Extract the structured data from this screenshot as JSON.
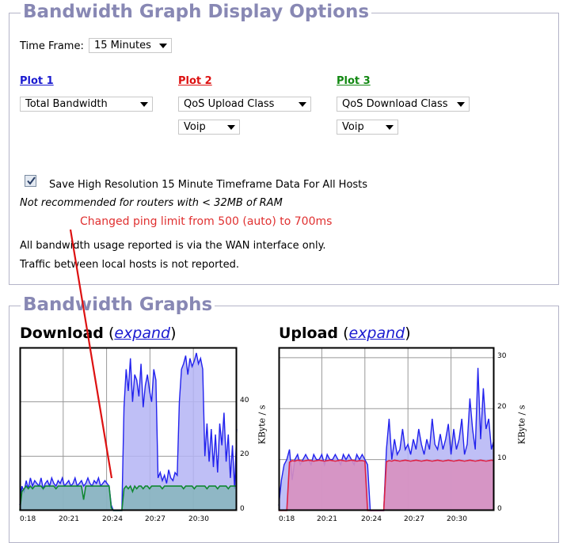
{
  "options": {
    "legend": "Bandwidth Graph Display Options",
    "time_frame": {
      "label": "Time Frame:",
      "value": "15 Minutes"
    },
    "plots": [
      {
        "title": "Plot 1",
        "color": "#1a1ad0",
        "select": "Total Bandwidth",
        "sub_select": ""
      },
      {
        "title": "Plot 2",
        "color": "#dd1111",
        "select": "QoS Upload Class",
        "sub_select": "Voip"
      },
      {
        "title": "Plot 3",
        "color": "#118811",
        "select": "QoS Download Class",
        "sub_select": "Voip"
      }
    ],
    "checkbox": {
      "checked": true,
      "label": "Save High Resolution 15 Minute Timeframe Data For All Hosts"
    },
    "warning": "Not recommended for routers with < 32MB of RAM",
    "annotation": "Changed ping limit from 500 (auto) to 700ms",
    "info_line1": "All bandwidth usage reported is via the WAN interface only.",
    "info_line2": "Traffic between local hosts is not reported."
  },
  "graphs": {
    "legend": "Bandwidth Graphs",
    "download": {
      "title": "Download",
      "expand_open": "(",
      "expand": "expand",
      "expand_close": ")"
    },
    "upload": {
      "title": "Upload",
      "expand_open": "(",
      "expand": "expand",
      "expand_close": ")"
    },
    "unit_label": "KByte / s"
  },
  "chart_data": [
    {
      "type": "area",
      "title": "Download",
      "ylabel": "KByte / s",
      "ylim": [
        0,
        60
      ],
      "y_ticks": [
        "0",
        "20",
        "40"
      ],
      "x_ticks": [
        "0:18",
        "20:21",
        "20:24",
        "20:27",
        "20:30"
      ],
      "series": [
        {
          "name": "",
          "color": "#2222ee",
          "values": [
            2,
            9,
            7,
            11,
            8,
            12,
            9,
            11,
            10,
            9,
            12,
            8,
            10,
            11,
            9,
            12,
            10,
            9,
            11,
            10,
            12,
            9,
            10,
            11,
            9,
            10,
            12,
            9,
            10,
            11,
            9,
            10,
            12,
            10,
            9,
            11,
            10,
            12,
            9,
            10,
            11,
            10,
            9,
            2,
            0,
            0,
            0,
            0,
            0,
            38,
            52,
            44,
            56,
            40,
            50,
            48,
            42,
            54,
            38,
            46,
            50,
            44,
            40,
            52,
            48,
            12,
            14,
            11,
            13,
            10,
            15,
            12,
            11,
            14,
            13,
            40,
            52,
            54,
            57,
            50,
            56,
            53,
            55,
            58,
            54,
            56,
            52,
            20,
            32,
            18,
            30,
            16,
            28,
            14,
            32,
            24,
            36,
            18,
            28,
            12,
            24,
            8,
            30
          ]
        },
        {
          "name": "",
          "color": "#118833",
          "values": [
            0,
            7,
            8,
            9,
            8,
            9,
            8,
            9,
            9,
            9,
            9,
            8,
            9,
            9,
            9,
            9,
            9,
            8,
            9,
            9,
            9,
            9,
            9,
            9,
            9,
            9,
            9,
            9,
            9,
            9,
            4,
            9,
            9,
            9,
            9,
            9,
            9,
            9,
            9,
            9,
            9,
            9,
            9,
            1,
            0,
            0,
            0,
            0,
            0,
            8,
            9,
            8,
            9,
            7,
            9,
            8,
            9,
            9,
            8,
            9,
            9,
            8,
            9,
            9,
            9,
            9,
            9,
            8,
            9,
            9,
            9,
            9,
            9,
            9,
            9,
            9,
            9,
            8,
            9,
            9,
            9,
            9,
            8,
            9,
            9,
            9,
            9,
            9,
            8,
            9,
            9,
            9,
            9,
            8,
            9,
            9,
            9,
            9,
            8,
            9,
            9,
            9,
            9
          ]
        }
      ]
    },
    {
      "type": "area",
      "title": "Upload",
      "ylabel": "KByte / s",
      "ylim": [
        0,
        32
      ],
      "y_ticks": [
        "0",
        "10",
        "20",
        "30"
      ],
      "x_ticks": [
        "0:18",
        "20:21",
        "20:24",
        "20:27",
        "20:30"
      ],
      "series": [
        {
          "name": "",
          "color": "#2222ee",
          "values": [
            1,
            6,
            9,
            10,
            12,
            6,
            10,
            11,
            9,
            10,
            11,
            10,
            9,
            11,
            10,
            10,
            11,
            9,
            11,
            10,
            10,
            11,
            10,
            9,
            11,
            10,
            11,
            10,
            9,
            11,
            10,
            11,
            10,
            9,
            0,
            0,
            0,
            0,
            0,
            0,
            12,
            18,
            10,
            14,
            11,
            12,
            16,
            12,
            13,
            11,
            14,
            12,
            16,
            13,
            11,
            14,
            12,
            18,
            13,
            12,
            15,
            12,
            14,
            17,
            11,
            16,
            12,
            14,
            18,
            11,
            13,
            22,
            16,
            12,
            28,
            14,
            24,
            16,
            18,
            12,
            14
          ]
        },
        {
          "name": "",
          "color": "#dd2244",
          "values": [
            0,
            0,
            0,
            0,
            9.5,
            9.8,
            9.7,
            9.9,
            9.8,
            9.7,
            9.8,
            9.9,
            9.8,
            9.7,
            9.8,
            9.9,
            9.8,
            9.7,
            9.8,
            9.9,
            9.8,
            9.7,
            9.8,
            9.9,
            9.8,
            9.7,
            9.8,
            9.9,
            9.8,
            9.7,
            9.8,
            9.8,
            9.7,
            0,
            0,
            0,
            0,
            0,
            0,
            0,
            9.6,
            9.8,
            9.7,
            9.9,
            9.8,
            9.7,
            9.8,
            9.9,
            9.8,
            9.7,
            9.8,
            9.9,
            9.8,
            9.7,
            9.8,
            9.9,
            9.8,
            9.7,
            9.8,
            9.9,
            9.8,
            9.7,
            9.8,
            9.9,
            9.8,
            9.7,
            9.8,
            9.9,
            9.8,
            9.7,
            9.8,
            9.9,
            9.8,
            9.7,
            9.8,
            9.9,
            9.8,
            9.7,
            9.8,
            9.9,
            9.8
          ]
        }
      ]
    }
  ]
}
